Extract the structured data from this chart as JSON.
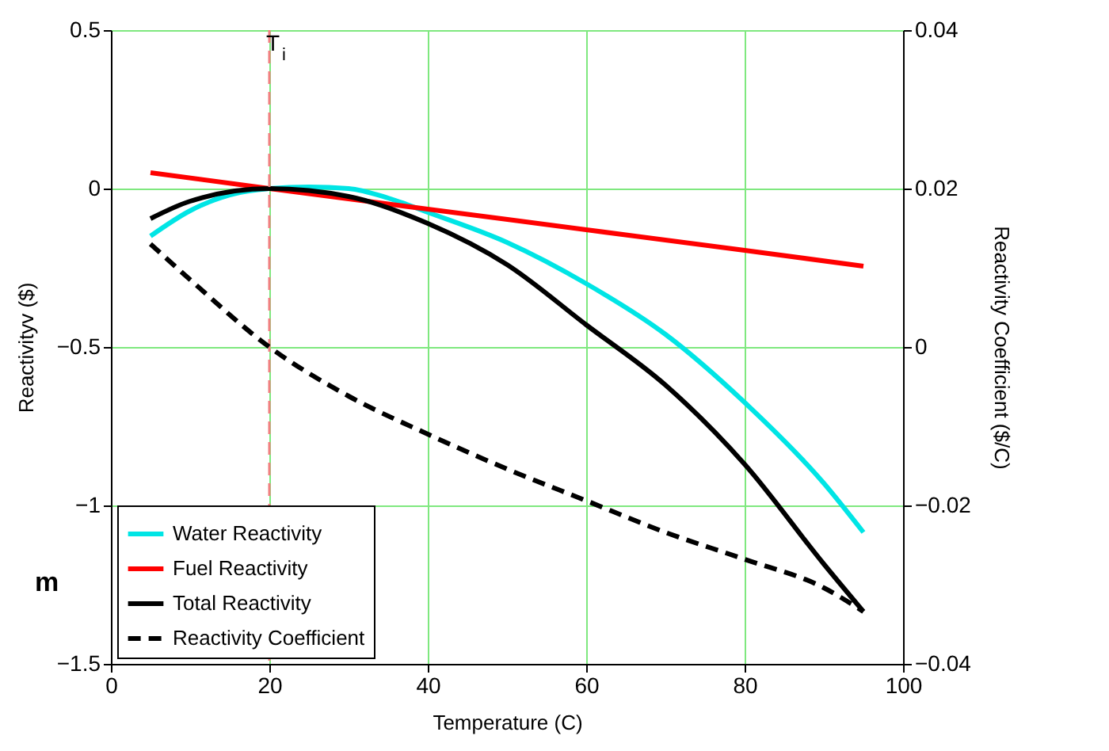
{
  "chart_data": {
    "type": "line",
    "xlabel": "Temperature (C)",
    "ylabel": "Reactivityv ($)",
    "y2label": "Reactivity Coefficient ($/C)",
    "xlim": [
      0,
      100
    ],
    "xticks": [
      0,
      20,
      40,
      60,
      80,
      100
    ],
    "ylim": [
      -1.5,
      0.5
    ],
    "yticks": [
      -1.5,
      -1,
      -0.5,
      0,
      0.5
    ],
    "y2lim": [
      -0.04,
      0.04
    ],
    "y2ticks": [
      -0.04,
      -0.02,
      0,
      0.02,
      0.04
    ],
    "grid": true,
    "legend": "bottom left",
    "marker": "none",
    "series": [
      {
        "name": "Water Reactivity",
        "color": "#00e5e5",
        "x": [
          5,
          10,
          15,
          20,
          25,
          30,
          35,
          40,
          50,
          60,
          70,
          80,
          90,
          95
        ],
        "values": [
          -0.15,
          -0.07,
          -0.02,
          0,
          0.005,
          0,
          -0.03,
          -0.075,
          -0.17,
          -0.3,
          -0.46,
          -0.675,
          -0.93,
          -1.085
        ]
      },
      {
        "name": "Fuel Reactivity",
        "color": "#ff0000",
        "x": [
          5,
          20,
          40,
          60,
          80,
          95
        ],
        "values": [
          0.05,
          0,
          -0.065,
          -0.13,
          -0.195,
          -0.245
        ]
      },
      {
        "name": "Total Reactivity",
        "color": "#000000",
        "x": [
          5,
          10,
          20,
          30,
          40,
          50,
          60,
          70,
          80,
          90,
          95
        ],
        "values": [
          -0.095,
          -0.04,
          0,
          -0.025,
          -0.11,
          -0.24,
          -0.43,
          -0.62,
          -0.87,
          -1.185,
          -1.335
        ]
      },
      {
        "name": "Reactivity Coefficient",
        "color": "#000000",
        "line_style": "dashed",
        "axis": "y2",
        "x": [
          5,
          10,
          20,
          30,
          40,
          50,
          60,
          70,
          80,
          90,
          95
        ],
        "values": [
          0.013,
          0.0085,
          0,
          -0.0062,
          -0.011,
          -0.0154,
          -0.0194,
          -0.0234,
          -0.0268,
          -0.0304,
          -0.0334
        ]
      }
    ],
    "ref_lines": [
      {
        "axis": "x",
        "value": 20,
        "label": "T$_{i}$",
        "color": "#f08080",
        "line_style": "dashed"
      }
    ],
    "annotations": [
      "m"
    ]
  }
}
